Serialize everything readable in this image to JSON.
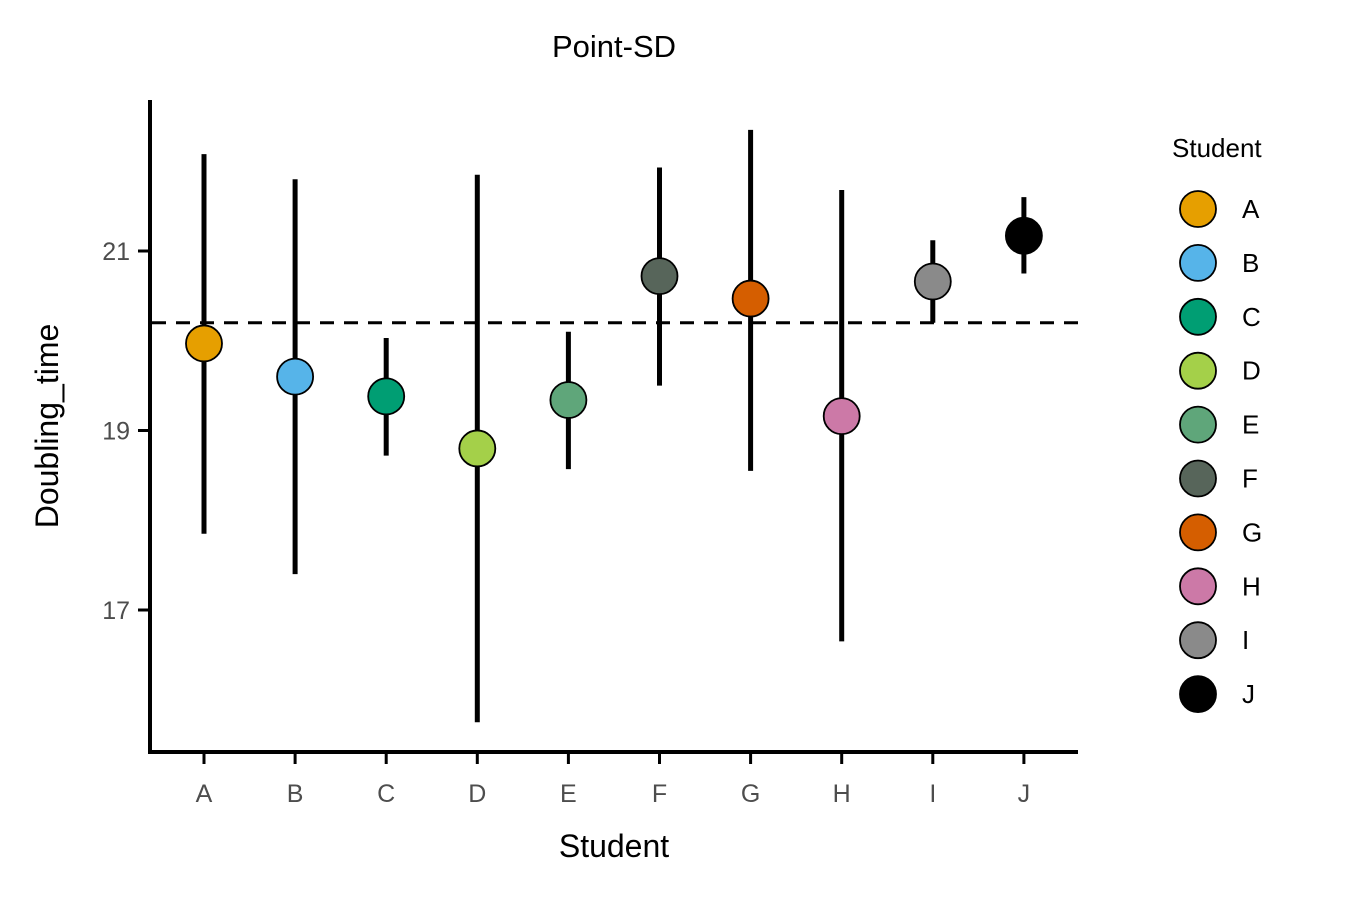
{
  "chart_data": {
    "type": "scatter",
    "title": "Point-SD",
    "xlabel": "Student",
    "ylabel": "Doubling_time",
    "categories": [
      "A",
      "B",
      "C",
      "D",
      "E",
      "F",
      "G",
      "H",
      "I",
      "J"
    ],
    "points": [
      {
        "category": "A",
        "mean": 19.97,
        "sd_low": 17.85,
        "sd_high": 22.08,
        "color": "#E69F00"
      },
      {
        "category": "B",
        "mean": 19.6,
        "sd_low": 17.4,
        "sd_high": 21.8,
        "color": "#56B4E9"
      },
      {
        "category": "C",
        "mean": 19.38,
        "sd_low": 18.72,
        "sd_high": 20.03,
        "color": "#009E73"
      },
      {
        "category": "D",
        "mean": 18.8,
        "sd_low": 15.75,
        "sd_high": 21.85,
        "color": "#A4D049"
      },
      {
        "category": "E",
        "mean": 19.34,
        "sd_low": 18.57,
        "sd_high": 20.1,
        "color": "#5FA67A"
      },
      {
        "category": "F",
        "mean": 20.72,
        "sd_low": 19.5,
        "sd_high": 21.93,
        "color": "#57655A"
      },
      {
        "category": "G",
        "mean": 20.47,
        "sd_low": 18.55,
        "sd_high": 22.35,
        "color": "#D55E00"
      },
      {
        "category": "H",
        "mean": 19.16,
        "sd_low": 16.65,
        "sd_high": 21.68,
        "color": "#CC79A7"
      },
      {
        "category": "I",
        "mean": 20.66,
        "sd_low": 20.2,
        "sd_high": 21.12,
        "color": "#8A8A8A"
      },
      {
        "category": "J",
        "mean": 21.17,
        "sd_low": 20.75,
        "sd_high": 21.6,
        "color": "#000000"
      }
    ],
    "reference_line": {
      "y": 20.2,
      "style": "dashed"
    },
    "y_ticks": [
      17,
      19,
      21
    ],
    "ylim": [
      15.5,
      22.7
    ],
    "grid": false,
    "legend": {
      "title": "Student",
      "placement": "right"
    }
  }
}
